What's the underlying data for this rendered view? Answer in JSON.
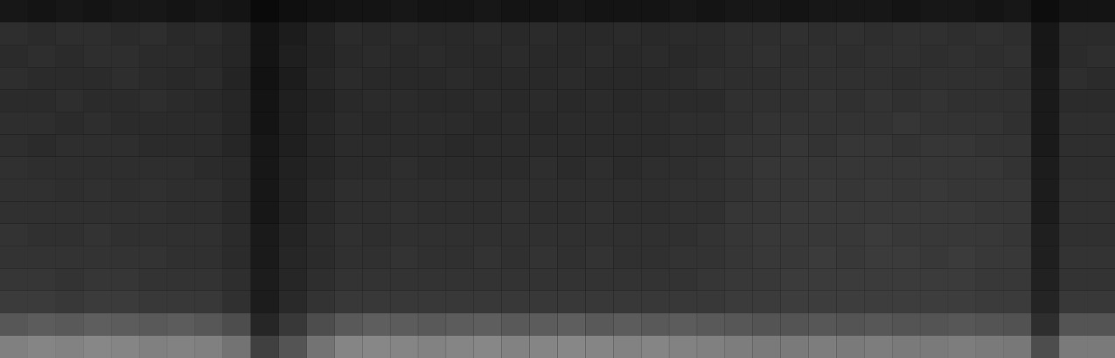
{
  "chart_data": {
    "type": "heatmap",
    "tick_labels": false,
    "zlim": [
      0,
      1
    ],
    "values": [
      [
        0.09,
        0.08,
        0.09,
        0.08,
        0.09,
        0.09,
        0.08,
        0.09,
        0.08,
        0.04,
        0.06,
        0.07,
        0.08,
        0.08,
        0.09,
        0.08,
        0.08,
        0.09,
        0.08,
        0.08,
        0.09,
        0.08,
        0.08,
        0.08,
        0.09,
        0.08,
        0.09,
        0.09,
        0.08,
        0.09,
        0.09,
        0.09,
        0.08,
        0.09,
        0.09,
        0.08,
        0.09,
        0.05,
        0.08,
        0.08
      ],
      [
        0.18,
        0.17,
        0.18,
        0.18,
        0.17,
        0.18,
        0.16,
        0.17,
        0.15,
        0.08,
        0.11,
        0.14,
        0.17,
        0.16,
        0.17,
        0.16,
        0.16,
        0.17,
        0.16,
        0.17,
        0.16,
        0.16,
        0.17,
        0.16,
        0.17,
        0.17,
        0.18,
        0.18,
        0.19,
        0.18,
        0.19,
        0.18,
        0.19,
        0.19,
        0.18,
        0.19,
        0.18,
        0.09,
        0.17,
        0.17
      ],
      [
        0.17,
        0.18,
        0.17,
        0.18,
        0.18,
        0.17,
        0.17,
        0.16,
        0.15,
        0.08,
        0.12,
        0.14,
        0.16,
        0.17,
        0.16,
        0.17,
        0.16,
        0.16,
        0.17,
        0.16,
        0.16,
        0.17,
        0.16,
        0.17,
        0.16,
        0.17,
        0.18,
        0.19,
        0.18,
        0.19,
        0.18,
        0.19,
        0.19,
        0.18,
        0.19,
        0.18,
        0.19,
        0.09,
        0.17,
        0.18
      ],
      [
        0.18,
        0.17,
        0.17,
        0.17,
        0.18,
        0.17,
        0.16,
        0.17,
        0.14,
        0.07,
        0.11,
        0.15,
        0.17,
        0.16,
        0.16,
        0.16,
        0.17,
        0.16,
        0.16,
        0.16,
        0.17,
        0.16,
        0.16,
        0.16,
        0.17,
        0.18,
        0.18,
        0.18,
        0.19,
        0.19,
        0.19,
        0.19,
        0.18,
        0.19,
        0.19,
        0.19,
        0.18,
        0.1,
        0.18,
        0.17
      ],
      [
        0.17,
        0.17,
        0.18,
        0.17,
        0.17,
        0.18,
        0.17,
        0.16,
        0.15,
        0.08,
        0.12,
        0.14,
        0.16,
        0.17,
        0.17,
        0.16,
        0.16,
        0.17,
        0.16,
        0.17,
        0.16,
        0.17,
        0.16,
        0.17,
        0.17,
        0.17,
        0.19,
        0.19,
        0.19,
        0.2,
        0.19,
        0.2,
        0.19,
        0.2,
        0.19,
        0.19,
        0.19,
        0.1,
        0.17,
        0.17
      ],
      [
        0.18,
        0.18,
        0.17,
        0.18,
        0.17,
        0.17,
        0.17,
        0.17,
        0.15,
        0.08,
        0.12,
        0.15,
        0.17,
        0.16,
        0.17,
        0.17,
        0.17,
        0.16,
        0.17,
        0.16,
        0.17,
        0.17,
        0.17,
        0.17,
        0.18,
        0.18,
        0.19,
        0.2,
        0.2,
        0.2,
        0.2,
        0.2,
        0.21,
        0.2,
        0.2,
        0.2,
        0.19,
        0.1,
        0.18,
        0.18
      ],
      [
        0.18,
        0.17,
        0.18,
        0.18,
        0.18,
        0.17,
        0.17,
        0.17,
        0.15,
        0.09,
        0.12,
        0.15,
        0.17,
        0.17,
        0.17,
        0.17,
        0.16,
        0.17,
        0.17,
        0.17,
        0.17,
        0.17,
        0.17,
        0.17,
        0.18,
        0.18,
        0.2,
        0.2,
        0.21,
        0.2,
        0.21,
        0.21,
        0.2,
        0.21,
        0.21,
        0.2,
        0.2,
        0.1,
        0.18,
        0.18
      ],
      [
        0.19,
        0.18,
        0.18,
        0.18,
        0.18,
        0.18,
        0.18,
        0.17,
        0.16,
        0.09,
        0.13,
        0.15,
        0.17,
        0.17,
        0.18,
        0.17,
        0.17,
        0.17,
        0.17,
        0.18,
        0.17,
        0.18,
        0.17,
        0.18,
        0.18,
        0.19,
        0.2,
        0.21,
        0.21,
        0.21,
        0.21,
        0.21,
        0.21,
        0.21,
        0.21,
        0.21,
        0.2,
        0.11,
        0.18,
        0.18
      ],
      [
        0.19,
        0.19,
        0.18,
        0.19,
        0.18,
        0.19,
        0.18,
        0.18,
        0.16,
        0.09,
        0.13,
        0.16,
        0.18,
        0.18,
        0.18,
        0.18,
        0.18,
        0.18,
        0.18,
        0.18,
        0.18,
        0.18,
        0.18,
        0.18,
        0.19,
        0.19,
        0.2,
        0.21,
        0.21,
        0.22,
        0.21,
        0.22,
        0.21,
        0.22,
        0.21,
        0.21,
        0.21,
        0.11,
        0.19,
        0.19
      ],
      [
        0.19,
        0.19,
        0.19,
        0.19,
        0.19,
        0.19,
        0.18,
        0.18,
        0.16,
        0.09,
        0.13,
        0.16,
        0.18,
        0.18,
        0.19,
        0.18,
        0.18,
        0.18,
        0.19,
        0.18,
        0.18,
        0.19,
        0.18,
        0.18,
        0.19,
        0.19,
        0.21,
        0.21,
        0.22,
        0.22,
        0.22,
        0.22,
        0.22,
        0.22,
        0.22,
        0.21,
        0.21,
        0.11,
        0.19,
        0.19
      ],
      [
        0.2,
        0.19,
        0.19,
        0.2,
        0.19,
        0.19,
        0.19,
        0.19,
        0.17,
        0.1,
        0.14,
        0.17,
        0.19,
        0.18,
        0.19,
        0.19,
        0.19,
        0.19,
        0.19,
        0.19,
        0.19,
        0.19,
        0.19,
        0.19,
        0.19,
        0.2,
        0.21,
        0.22,
        0.22,
        0.22,
        0.22,
        0.23,
        0.22,
        0.22,
        0.22,
        0.22,
        0.21,
        0.12,
        0.19,
        0.19
      ],
      [
        0.2,
        0.2,
        0.2,
        0.2,
        0.2,
        0.2,
        0.19,
        0.19,
        0.17,
        0.1,
        0.15,
        0.17,
        0.19,
        0.19,
        0.2,
        0.19,
        0.19,
        0.2,
        0.19,
        0.2,
        0.19,
        0.2,
        0.19,
        0.19,
        0.2,
        0.2,
        0.21,
        0.22,
        0.22,
        0.23,
        0.22,
        0.23,
        0.23,
        0.22,
        0.23,
        0.22,
        0.22,
        0.12,
        0.2,
        0.2
      ],
      [
        0.21,
        0.21,
        0.2,
        0.21,
        0.21,
        0.2,
        0.2,
        0.2,
        0.18,
        0.11,
        0.15,
        0.18,
        0.2,
        0.2,
        0.2,
        0.2,
        0.2,
        0.2,
        0.2,
        0.2,
        0.2,
        0.2,
        0.2,
        0.2,
        0.2,
        0.21,
        0.22,
        0.22,
        0.23,
        0.23,
        0.23,
        0.23,
        0.23,
        0.23,
        0.23,
        0.22,
        0.22,
        0.13,
        0.2,
        0.2
      ],
      [
        0.23,
        0.23,
        0.22,
        0.23,
        0.23,
        0.22,
        0.22,
        0.22,
        0.19,
        0.11,
        0.16,
        0.2,
        0.22,
        0.22,
        0.22,
        0.22,
        0.22,
        0.22,
        0.22,
        0.22,
        0.22,
        0.22,
        0.22,
        0.22,
        0.22,
        0.22,
        0.23,
        0.23,
        0.24,
        0.24,
        0.24,
        0.24,
        0.24,
        0.24,
        0.24,
        0.23,
        0.23,
        0.14,
        0.22,
        0.22
      ],
      [
        0.34,
        0.36,
        0.35,
        0.37,
        0.36,
        0.35,
        0.36,
        0.34,
        0.3,
        0.15,
        0.22,
        0.3,
        0.35,
        0.37,
        0.36,
        0.35,
        0.36,
        0.37,
        0.35,
        0.36,
        0.37,
        0.35,
        0.36,
        0.35,
        0.36,
        0.35,
        0.34,
        0.33,
        0.33,
        0.34,
        0.33,
        0.34,
        0.33,
        0.33,
        0.34,
        0.33,
        0.32,
        0.18,
        0.33,
        0.33
      ],
      [
        0.5,
        0.52,
        0.51,
        0.53,
        0.52,
        0.5,
        0.51,
        0.5,
        0.45,
        0.25,
        0.33,
        0.45,
        0.52,
        0.53,
        0.52,
        0.51,
        0.52,
        0.53,
        0.51,
        0.52,
        0.53,
        0.52,
        0.51,
        0.52,
        0.51,
        0.5,
        0.49,
        0.48,
        0.48,
        0.49,
        0.48,
        0.49,
        0.48,
        0.48,
        0.49,
        0.48,
        0.47,
        0.3,
        0.48,
        0.48
      ]
    ]
  }
}
